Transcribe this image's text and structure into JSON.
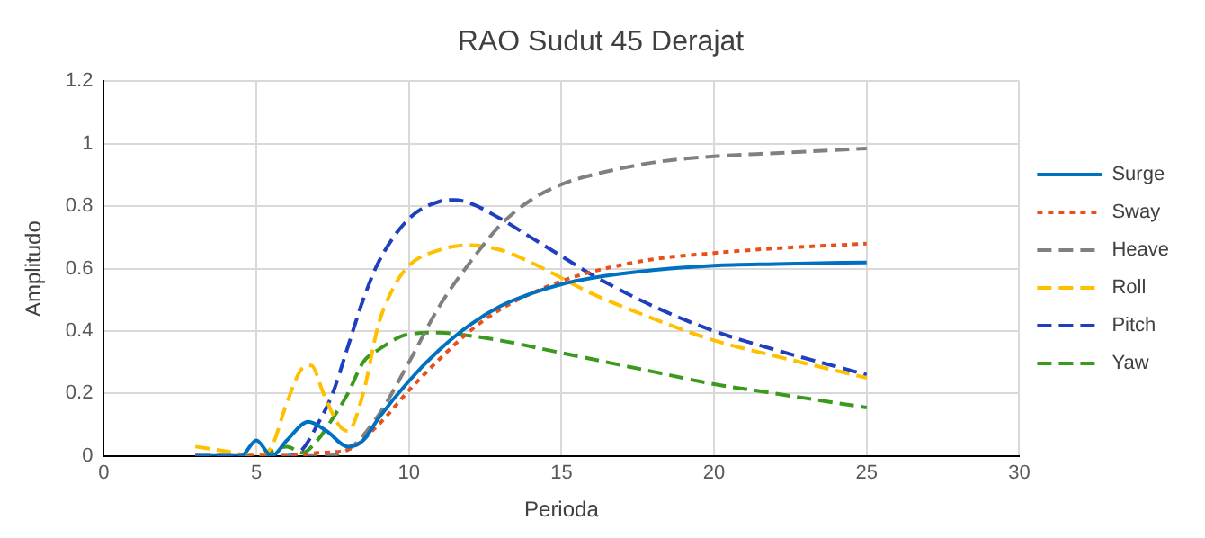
{
  "chart_data": {
    "type": "line",
    "title": "RAO Sudut 45 Derajat",
    "xlabel": "Perioda",
    "ylabel": "Amplitudo",
    "xlim": [
      0,
      30
    ],
    "xticks": [
      0,
      5,
      10,
      15,
      20,
      25,
      30
    ],
    "ylim": [
      0,
      1.2
    ],
    "yticks": [
      0,
      0.2,
      0.4,
      0.6,
      0.8,
      1,
      1.2
    ],
    "grid": true,
    "legend": "right",
    "marker": "none",
    "series": [
      {
        "name": "Surge",
        "color": "#0070c0",
        "line_style": "solid",
        "x": [
          3,
          4.5,
          5,
          5.5,
          6,
          6.7,
          7.3,
          8,
          8.5,
          9,
          10,
          11,
          12,
          13,
          14,
          15,
          16,
          18,
          20,
          22,
          25
        ],
        "values": [
          0,
          0,
          0.05,
          0,
          0.05,
          0.11,
          0.08,
          0.03,
          0.05,
          0.12,
          0.24,
          0.34,
          0.42,
          0.48,
          0.52,
          0.55,
          0.57,
          0.595,
          0.61,
          0.615,
          0.62
        ]
      },
      {
        "name": "Sway",
        "color": "#e8501a",
        "line_style": "dotted",
        "x": [
          3,
          6,
          7,
          8,
          9,
          10,
          11,
          12,
          13,
          14,
          15,
          16,
          18,
          20,
          22,
          25
        ],
        "values": [
          0,
          0,
          0.01,
          0.02,
          0.1,
          0.21,
          0.31,
          0.4,
          0.47,
          0.52,
          0.56,
          0.59,
          0.63,
          0.65,
          0.665,
          0.68
        ]
      },
      {
        "name": "Heave",
        "color": "#808080",
        "line_style": "dashed",
        "x": [
          3,
          7,
          8,
          9,
          10,
          11,
          12,
          13,
          14,
          15,
          16,
          18,
          20,
          22,
          25
        ],
        "values": [
          0,
          0,
          0.02,
          0.13,
          0.3,
          0.48,
          0.62,
          0.74,
          0.82,
          0.87,
          0.9,
          0.94,
          0.96,
          0.97,
          0.985
        ]
      },
      {
        "name": "Roll",
        "color": "#ffc000",
        "line_style": "dashed",
        "x": [
          3,
          4,
          5,
          5.5,
          6,
          6.5,
          6.8,
          7.2,
          7.7,
          8,
          8.5,
          9,
          9.5,
          10,
          11,
          12,
          13,
          14,
          15,
          16,
          18,
          20,
          22,
          25
        ],
        "values": [
          0.03,
          0.015,
          0,
          0.03,
          0.17,
          0.28,
          0.29,
          0.2,
          0.1,
          0.08,
          0.2,
          0.42,
          0.54,
          0.61,
          0.66,
          0.675,
          0.66,
          0.62,
          0.57,
          0.52,
          0.44,
          0.37,
          0.32,
          0.25
        ]
      },
      {
        "name": "Pitch",
        "color": "#1f3fbf",
        "line_style": "dashed",
        "x": [
          3,
          6,
          6.5,
          7,
          7.5,
          8,
          8.5,
          9,
          10,
          11,
          11.5,
          12,
          13,
          14,
          15,
          16,
          18,
          20,
          22,
          25
        ],
        "values": [
          0,
          0,
          0.02,
          0.1,
          0.2,
          0.35,
          0.5,
          0.62,
          0.76,
          0.815,
          0.82,
          0.81,
          0.76,
          0.7,
          0.64,
          0.58,
          0.48,
          0.4,
          0.34,
          0.26
        ]
      },
      {
        "name": "Yaw",
        "color": "#3a9a1e",
        "line_style": "dashed",
        "x": [
          3,
          5,
          6,
          6.5,
          7,
          7.5,
          8,
          8.5,
          9,
          10,
          11,
          12,
          13,
          15,
          18,
          20,
          22,
          25
        ],
        "values": [
          0,
          0,
          0.03,
          0.01,
          0.05,
          0.12,
          0.2,
          0.3,
          0.34,
          0.39,
          0.395,
          0.385,
          0.37,
          0.33,
          0.27,
          0.23,
          0.2,
          0.155
        ]
      }
    ]
  }
}
